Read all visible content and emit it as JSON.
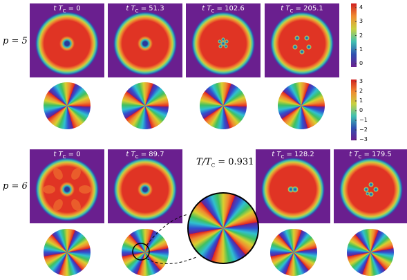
{
  "row_labels": [
    "p = 5",
    "p = 6"
  ],
  "time_label": {
    "var": "t T",
    "sub": "C",
    "eq": "="
  },
  "rows": [
    {
      "times": [
        "0",
        "51.3",
        "102.6",
        "205.1"
      ]
    },
    {
      "times": [
        "0",
        "89.7",
        "128.2",
        "179.5"
      ]
    }
  ],
  "temperature": {
    "text": "T/T",
    "sub": "C",
    "eq": "= 0.931"
  },
  "colorbars": [
    {
      "ticks": [
        "4",
        "3",
        "2",
        "1",
        "0"
      ]
    },
    {
      "ticks": [
        "3",
        "2",
        "1",
        "0",
        "−1",
        "−2",
        "−3"
      ]
    }
  ]
}
